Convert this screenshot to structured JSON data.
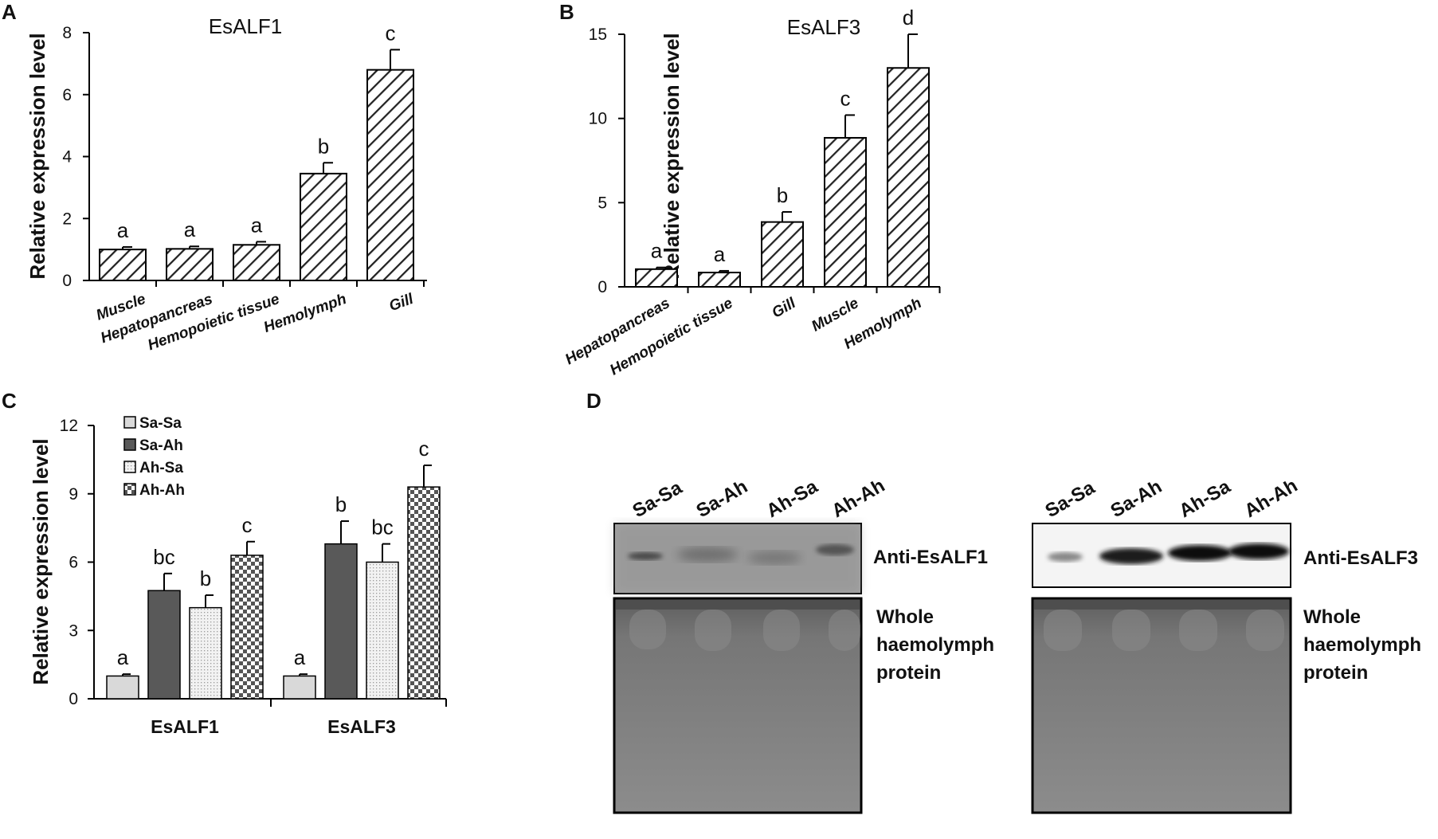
{
  "panels": {
    "A": {
      "letter": "A"
    },
    "B": {
      "letter": "B"
    },
    "C": {
      "letter": "C"
    },
    "D": {
      "letter": "D"
    }
  },
  "chart_data": [
    {
      "panel": "A",
      "type": "bar",
      "title": "EsALF1",
      "ylabel": "Relative expression level",
      "ylim": [
        0,
        8
      ],
      "yticks": [
        0,
        2,
        4,
        6,
        8
      ],
      "categories": [
        "Muscle",
        "Hepatopancreas",
        "Hemopoietic tissue",
        "Hemolymph",
        "Gill"
      ],
      "values": [
        1.0,
        1.02,
        1.15,
        3.45,
        6.8
      ],
      "errors": [
        0.08,
        0.08,
        0.1,
        0.35,
        0.65
      ],
      "significance": [
        "a",
        "a",
        "a",
        "b",
        "c"
      ],
      "pattern": "diagonal-hatch"
    },
    {
      "panel": "B",
      "type": "bar",
      "title": "EsALF3",
      "ylabel": "Relative expression level",
      "ylim": [
        0,
        15
      ],
      "yticks": [
        0,
        5,
        10,
        15
      ],
      "categories": [
        "Hepatopancreas",
        "Hemopoietic tissue",
        "Gill",
        "Muscle",
        "Hemolymph"
      ],
      "values": [
        1.05,
        0.85,
        3.85,
        8.85,
        13.0
      ],
      "errors": [
        0.1,
        0.1,
        0.6,
        1.35,
        2.0
      ],
      "significance": [
        "a",
        "a",
        "b",
        "c",
        "d"
      ],
      "pattern": "diagonal-hatch"
    },
    {
      "panel": "C",
      "type": "bar",
      "ylabel": "Relative expression level",
      "ylim": [
        0,
        12
      ],
      "yticks": [
        0,
        3,
        6,
        9,
        12
      ],
      "categories": [
        "EsALF1",
        "EsALF3"
      ],
      "legend_position": "top-left",
      "series": [
        {
          "name": "Sa-Sa",
          "values": [
            1.0,
            1.0
          ],
          "errors": [
            0.08,
            0.08
          ],
          "significance": [
            "a",
            "a"
          ],
          "fill": "#d9d9d9"
        },
        {
          "name": "Sa-Ah",
          "values": [
            4.75,
            6.8
          ],
          "errors": [
            0.75,
            1.0
          ],
          "significance": [
            "bc",
            "b"
          ],
          "fill": "#595959"
        },
        {
          "name": "Ah-Sa",
          "values": [
            4.0,
            6.0
          ],
          "errors": [
            0.55,
            0.8
          ],
          "significance": [
            "b",
            "bc"
          ],
          "fill": "#efefef"
        },
        {
          "name": "Ah-Ah",
          "values": [
            6.3,
            9.3
          ],
          "errors": [
            0.6,
            0.95
          ],
          "significance": [
            "c",
            "c"
          ],
          "fill": "checker"
        }
      ]
    }
  ],
  "blots": {
    "left": {
      "lanes": [
        "Sa-Sa",
        "Sa-Ah",
        "Ah-Sa",
        "Ah-Ah"
      ],
      "antibody_label": "Anti-EsALF1",
      "protein_label_lines": [
        "Whole",
        "haemolymph",
        "protein"
      ]
    },
    "right": {
      "lanes": [
        "Sa-Sa",
        "Sa-Ah",
        "Ah-Sa",
        "Ah-Ah"
      ],
      "antibody_label": "Anti-EsALF3",
      "protein_label_lines": [
        "Whole",
        "haemolymph",
        "protein"
      ]
    }
  }
}
